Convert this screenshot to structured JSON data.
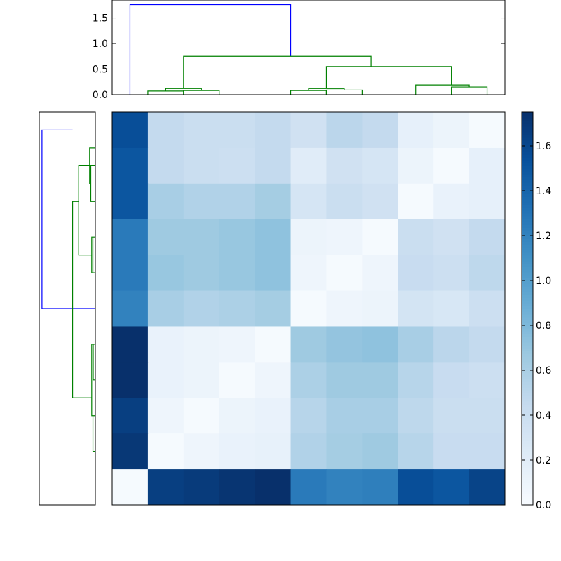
{
  "chart_data": [
    {
      "type": "heatmap",
      "title": "",
      "xlabel": "",
      "ylabel": "",
      "colormap": "Blues",
      "vmin": 0,
      "vmax": 1.75,
      "colorbar_ticks": [
        "0.0",
        "0.2",
        "0.4",
        "0.6",
        "0.8",
        "1.0",
        "1.2",
        "1.4",
        "1.6"
      ],
      "colorbar_tick_values": [
        0,
        0.2,
        0.4,
        0.6,
        0.8,
        1.0,
        1.2,
        1.4,
        1.6
      ],
      "matrix": [
        [
          1.55,
          0.45,
          0.4,
          0.4,
          0.45,
          0.35,
          0.5,
          0.45,
          0.15,
          0.1,
          0.02
        ],
        [
          1.5,
          0.45,
          0.4,
          0.38,
          0.45,
          0.2,
          0.35,
          0.3,
          0.1,
          0.02,
          0.15
        ],
        [
          1.5,
          0.6,
          0.55,
          0.55,
          0.62,
          0.3,
          0.4,
          0.35,
          0.02,
          0.12,
          0.15
        ],
        [
          1.25,
          0.65,
          0.65,
          0.68,
          0.72,
          0.1,
          0.08,
          0.02,
          0.4,
          0.35,
          0.45
        ],
        [
          1.25,
          0.68,
          0.65,
          0.68,
          0.72,
          0.08,
          0.02,
          0.08,
          0.42,
          0.38,
          0.48
        ],
        [
          1.2,
          0.6,
          0.55,
          0.58,
          0.62,
          0.02,
          0.08,
          0.1,
          0.32,
          0.28,
          0.38
        ],
        [
          1.75,
          0.12,
          0.1,
          0.08,
          0.02,
          0.65,
          0.7,
          0.72,
          0.6,
          0.5,
          0.45
        ],
        [
          1.75,
          0.12,
          0.1,
          0.02,
          0.08,
          0.58,
          0.65,
          0.65,
          0.52,
          0.42,
          0.38
        ],
        [
          1.65,
          0.08,
          0.02,
          0.1,
          0.12,
          0.52,
          0.6,
          0.6,
          0.48,
          0.4,
          0.4
        ],
        [
          1.7,
          0.02,
          0.08,
          0.12,
          0.14,
          0.55,
          0.62,
          0.65,
          0.52,
          0.42,
          0.42
        ],
        [
          0.02,
          1.65,
          1.68,
          1.72,
          1.75,
          1.25,
          1.2,
          1.22,
          1.55,
          1.5,
          1.62
        ]
      ]
    },
    {
      "type": "dendrogram",
      "orientation": "top",
      "ylim": [
        0,
        1.85
      ],
      "yticks": [
        "0.0",
        "0.5",
        "1.0",
        "1.5"
      ],
      "ytick_values": [
        0,
        0.5,
        1.0,
        1.5
      ],
      "links": [
        {
          "left": 0.5,
          "right": 5.0,
          "height": 1.76,
          "color": "#0000ff",
          "left_h": 0,
          "right_h": 0.75
        },
        {
          "left": 2.0,
          "right": 7.25,
          "height": 0.75,
          "color": "#008000",
          "left_h": 0.12,
          "right_h": 0.55
        },
        {
          "left": 1.5,
          "right": 2.5,
          "height": 0.12,
          "color": "#008000",
          "left_h": 0.07,
          "right_h": 0.08
        },
        {
          "left": 1.0,
          "right": 2.0,
          "height": 0.07,
          "color": "#008000",
          "left_h": 0,
          "right_h": 0
        },
        {
          "left": 2.0,
          "right": 3.0,
          "height": 0.08,
          "color": "#008000",
          "left_h": 0,
          "right_h": 0
        },
        {
          "left": 6.0,
          "right": 9.5,
          "height": 0.55,
          "color": "#008000",
          "left_h": 0.12,
          "right_h": 0.19
        },
        {
          "left": 5.5,
          "right": 6.5,
          "height": 0.12,
          "color": "#008000",
          "left_h": 0.08,
          "right_h": 0.09
        },
        {
          "left": 5.0,
          "right": 6.0,
          "height": 0.08,
          "color": "#008000",
          "left_h": 0,
          "right_h": 0
        },
        {
          "left": 6.0,
          "right": 7.0,
          "height": 0.09,
          "color": "#008000",
          "left_h": 0,
          "right_h": 0
        },
        {
          "left": 8.5,
          "right": 10.0,
          "height": 0.19,
          "color": "#008000",
          "left_h": 0,
          "right_h": 0.15
        },
        {
          "left": 9.5,
          "right": 10.5,
          "height": 0.15,
          "color": "#008000",
          "left_h": 0,
          "right_h": 0
        }
      ]
    },
    {
      "type": "dendrogram",
      "orientation": "left",
      "links": [
        {
          "a": 0.5,
          "b": 5.5,
          "height": 1.76,
          "color": "#0000ff",
          "a_h": 0.75,
          "b_h": 0
        },
        {
          "a": 2.5,
          "b": 8.0,
          "height": 0.75,
          "color": "#008000",
          "a_h": 0.55,
          "b_h": 0.12
        },
        {
          "a": 1.5,
          "b": 4.0,
          "height": 0.55,
          "color": "#008000",
          "a_h": 0.19,
          "b_h": 0.12
        },
        {
          "a": 1.0,
          "b": 2.0,
          "height": 0.19,
          "color": "#008000",
          "a_h": 0,
          "b_h": 0.15
        },
        {
          "a": 1.5,
          "b": 2.5,
          "height": 0.15,
          "color": "#008000",
          "a_h": 0,
          "b_h": 0
        },
        {
          "a": 3.5,
          "b": 4.5,
          "height": 0.12,
          "color": "#008000",
          "a_h": 0.08,
          "b_h": 0
        },
        {
          "a": 3.5,
          "b": 4.5,
          "height": 0.08,
          "color": "#008000",
          "a_h": 0,
          "b_h": 0
        },
        {
          "a": 6.5,
          "b": 8.5,
          "height": 0.12,
          "color": "#008000",
          "a_h": 0.07,
          "b_h": 0.08
        },
        {
          "a": 6.5,
          "b": 7.5,
          "height": 0.07,
          "color": "#008000",
          "a_h": 0,
          "b_h": 0
        },
        {
          "a": 8.5,
          "b": 9.5,
          "height": 0.08,
          "color": "#008000",
          "a_h": 0,
          "b_h": 0
        }
      ]
    }
  ]
}
